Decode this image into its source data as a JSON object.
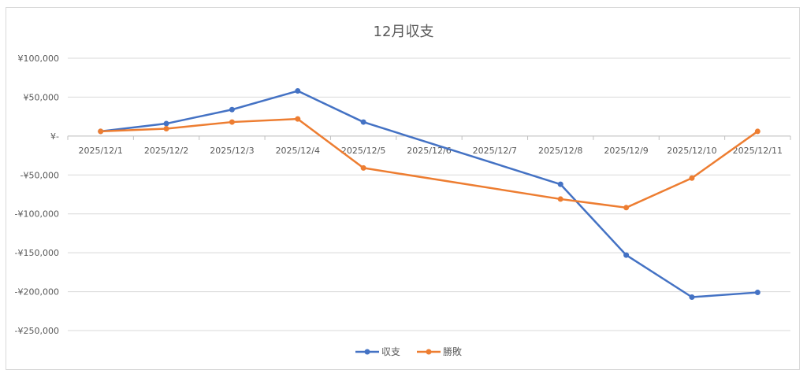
{
  "chart_data": {
    "type": "line",
    "title": "12月収支",
    "categories": [
      "2025/12/1",
      "2025/12/2",
      "2025/12/3",
      "2025/12/4",
      "2025/12/5",
      "2025/12/6",
      "2025/12/7",
      "2025/12/8",
      "2025/12/9",
      "2025/12/10",
      "2025/12/11"
    ],
    "ylim": [
      -250000,
      100000
    ],
    "yticks": [
      100000,
      50000,
      0,
      -50000,
      -100000,
      -150000,
      -200000,
      -250000
    ],
    "ytick_labels": [
      "¥100,000",
      "¥50,000",
      "¥-",
      "-¥50,000",
      "-¥100,000",
      "-¥150,000",
      "-¥200,000",
      "-¥250,000"
    ],
    "grid": true,
    "legend_position": "bottom",
    "series": [
      {
        "name": "収支",
        "color": "#4472C4",
        "values": [
          6000,
          16000,
          34000,
          58000,
          18000,
          null,
          null,
          -62000,
          -153000,
          -207000,
          -201000
        ]
      },
      {
        "name": "勝敗",
        "color": "#ED7D31",
        "values": [
          6000,
          9500,
          18000,
          22000,
          -41000,
          null,
          null,
          -81000,
          -92000,
          -54000,
          6000
        ]
      }
    ]
  }
}
